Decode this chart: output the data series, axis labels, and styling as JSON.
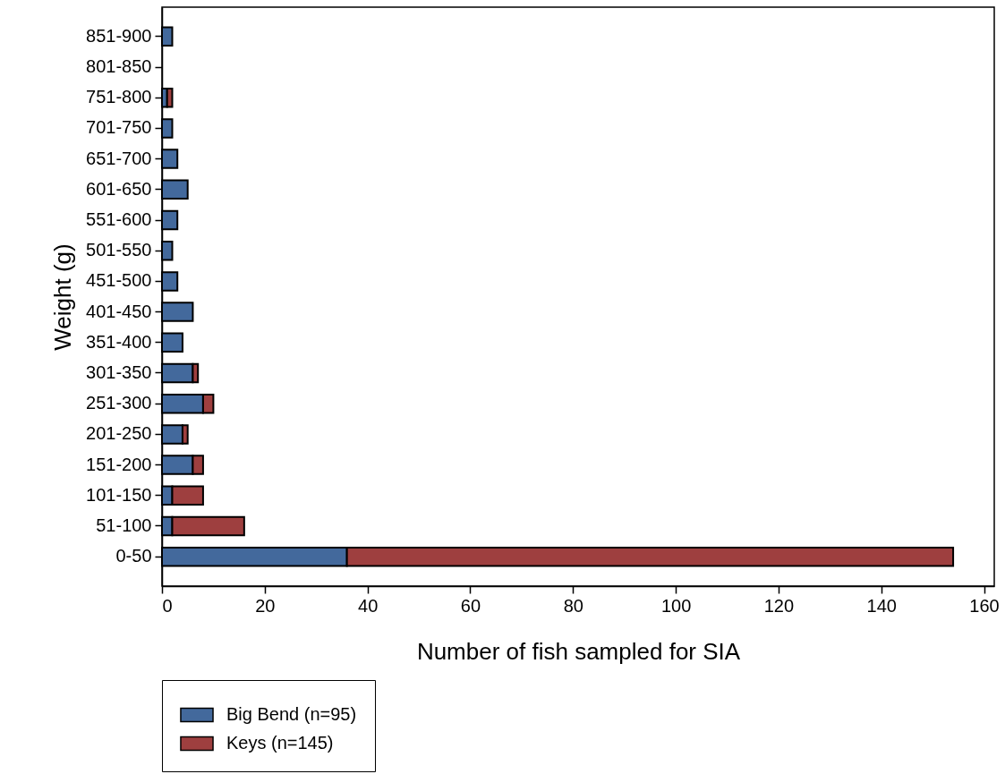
{
  "chart_data": {
    "type": "bar",
    "orientation": "horizontal",
    "stacked": true,
    "categories": [
      "851-900",
      "801-850",
      "751-800",
      "701-750",
      "651-700",
      "601-650",
      "551-600",
      "501-550",
      "451-500",
      "401-450",
      "351-400",
      "301-350",
      "251-300",
      "201-250",
      "151-200",
      "101-150",
      "51-100",
      "0-50"
    ],
    "series": [
      {
        "name": "Big Bend (n=95)",
        "color": "#43699c",
        "values": [
          2,
          0,
          1,
          2,
          3,
          5,
          3,
          2,
          3,
          6,
          4,
          6,
          8,
          4,
          6,
          2,
          2,
          36
        ]
      },
      {
        "name": "Keys (n=145)",
        "color": "#9e3f3f",
        "values": [
          0,
          0,
          1,
          0,
          0,
          0,
          0,
          0,
          0,
          0,
          0,
          1,
          2,
          1,
          2,
          6,
          14,
          118
        ]
      }
    ],
    "xlabel": "Number of fish sampled for SIA",
    "ylabel": "Weight (g)",
    "xlim": [
      0,
      162
    ],
    "xticks": [
      0,
      20,
      40,
      60,
      80,
      100,
      120,
      140,
      160
    ],
    "grid": false,
    "legend": "bottom left"
  }
}
